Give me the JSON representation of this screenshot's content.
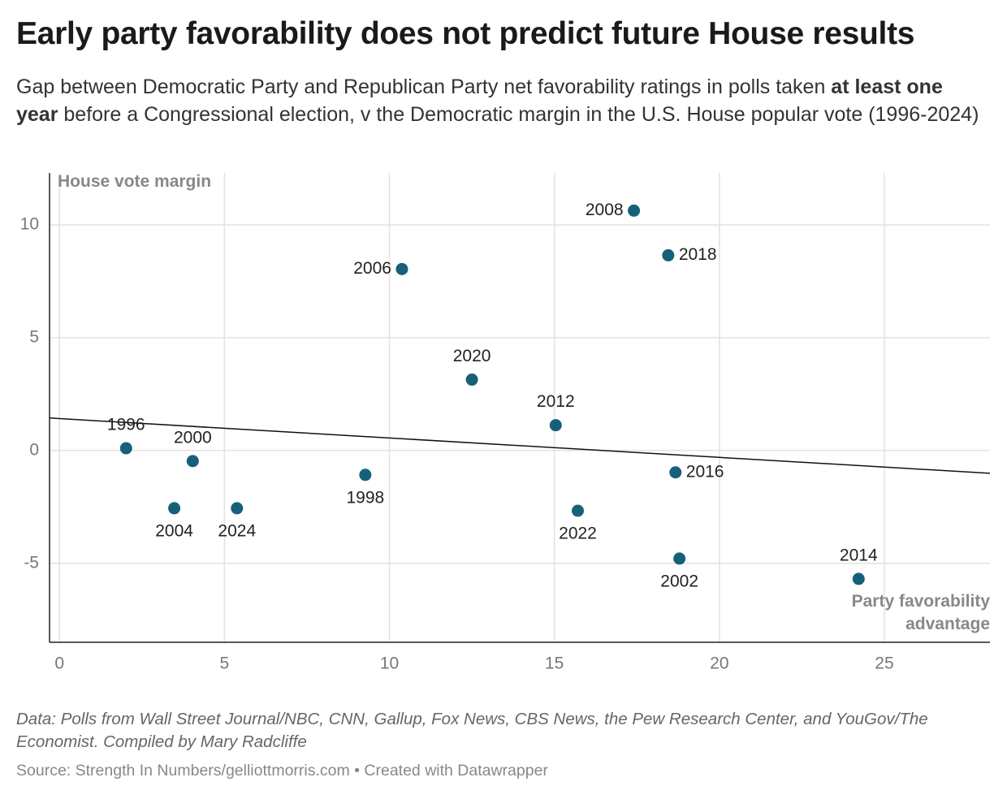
{
  "chart_data": {
    "type": "scatter",
    "title": "Early party favorability does not predict future House results",
    "subtitle": [
      "Gap between Democratic Party and Republican Party net favorability ratings in polls taken ",
      "at least one year",
      " before a Congressional election, v the Democratic margin in the U.S. House popular vote (1996-2024)"
    ],
    "y_label": "House vote margin",
    "x_label": "Party favorability advantage",
    "xlim": [
      -0.3,
      28.2
    ],
    "ylim": [
      -8.5,
      12.3
    ],
    "xticks": [
      0,
      5,
      10,
      15,
      20,
      25
    ],
    "yticks": [
      -5,
      0,
      5,
      10
    ],
    "grid": true,
    "series": [
      {
        "color": "#17607a",
        "labels": [
          "1996",
          "2004",
          "2000",
          "2024",
          "1998",
          "2006",
          "2020",
          "2012",
          "2022",
          "2008",
          "2018",
          "2016",
          "2002",
          "2014"
        ],
        "x": [
          2.02,
          3.48,
          4.04,
          5.38,
          9.27,
          10.38,
          12.5,
          15.04,
          15.71,
          17.41,
          18.45,
          18.67,
          18.79,
          24.22
        ],
        "values": [
          0.1,
          -2.56,
          -0.47,
          -2.56,
          -1.08,
          8.04,
          3.14,
          1.12,
          -2.67,
          10.63,
          8.65,
          -0.97,
          -4.79,
          -5.69
        ]
      }
    ],
    "trendline": {
      "x": [
        -0.3,
        28.2
      ],
      "y": [
        1.44,
        -1.01
      ]
    },
    "notes": "Data: Polls from Wall Street Journal/NBC, CNN, Gallup, Fox News, CBS News, the Pew Research Center, and YouGov/The Economist. Compiled by Mary Radcliffe",
    "source": "Source: Strength In Numbers/gelliottmorris.com • Created with Datawrapper"
  }
}
